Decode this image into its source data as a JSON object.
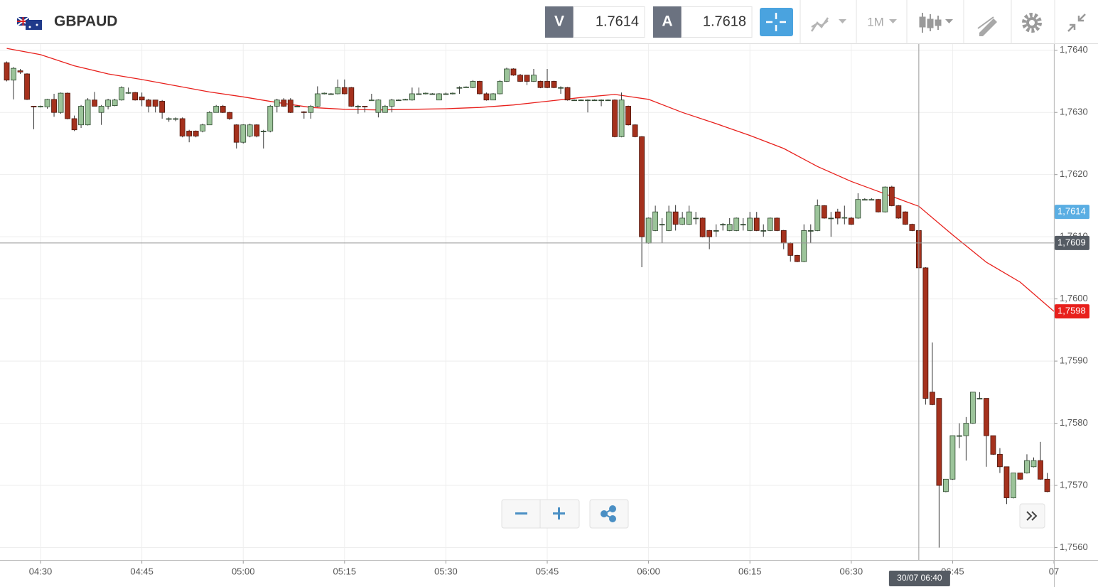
{
  "toolbar": {
    "symbol": "GBPAUD",
    "bid_label": "V",
    "bid": "1.7614",
    "ask_label": "A",
    "ask": "1.7618",
    "timeframe": "1M"
  },
  "chart_data": {
    "type": "candlestick",
    "up_color": "#9cc49a",
    "down_color": "#a5311d",
    "xlim": [
      "04:24",
      "07:00"
    ],
    "ylim": [
      1.7558,
      1.7641
    ],
    "grid": true,
    "xticks": [
      "04:30",
      "04:45",
      "05:00",
      "05:15",
      "05:30",
      "05:45",
      "06:00",
      "06:15",
      "06:30",
      "06:45",
      {
        "value": "07:00",
        "label": "07"
      }
    ],
    "yticks": [
      {
        "value": 1.764,
        "label": "1,7640"
      },
      {
        "value": 1.763,
        "label": "1,7630"
      },
      {
        "value": 1.762,
        "label": "1,7620"
      },
      {
        "value": 1.761,
        "label": "1,7610"
      },
      {
        "value": 1.76,
        "label": "1,7600"
      },
      {
        "value": 1.759,
        "label": "1,7590"
      },
      {
        "value": 1.758,
        "label": "1,7580"
      },
      {
        "value": 1.757,
        "label": "1,7570"
      },
      {
        "value": 1.756,
        "label": "1,7560"
      }
    ],
    "x": [
      "04:25",
      "04:26",
      "04:27",
      "04:28",
      "04:29",
      "04:30",
      "04:31",
      "04:32",
      "04:33",
      "04:34",
      "04:35",
      "04:36",
      "04:37",
      "04:38",
      "04:39",
      "04:40",
      "04:41",
      "04:42",
      "04:43",
      "04:44",
      "04:45",
      "04:46",
      "04:47",
      "04:48",
      "04:49",
      "04:50",
      "04:51",
      "04:52",
      "04:53",
      "04:54",
      "04:55",
      "04:56",
      "04:57",
      "04:58",
      "04:59",
      "05:00",
      "05:01",
      "05:02",
      "05:03",
      "05:04",
      "05:05",
      "05:06",
      "05:07",
      "05:08",
      "05:09",
      "05:10",
      "05:11",
      "05:12",
      "05:13",
      "05:14",
      "05:15",
      "05:16",
      "05:17",
      "05:18",
      "05:19",
      "05:20",
      "05:21",
      "05:22",
      "05:23",
      "05:24",
      "05:25",
      "05:26",
      "05:27",
      "05:28",
      "05:29",
      "05:30",
      "05:31",
      "05:32",
      "05:33",
      "05:34",
      "05:35",
      "05:36",
      "05:37",
      "05:38",
      "05:39",
      "05:40",
      "05:41",
      "05:42",
      "05:43",
      "05:44",
      "05:45",
      "05:46",
      "05:47",
      "05:48",
      "05:49",
      "05:50",
      "05:51",
      "05:52",
      "05:53",
      "05:54",
      "05:55",
      "05:56",
      "05:57",
      "05:58",
      "05:59",
      "06:00",
      "06:01",
      "06:02",
      "06:03",
      "06:04",
      "06:05",
      "06:06",
      "06:07",
      "06:08",
      "06:09",
      "06:10",
      "06:11",
      "06:12",
      "06:13",
      "06:14",
      "06:15",
      "06:16",
      "06:17",
      "06:18",
      "06:19",
      "06:20",
      "06:21",
      "06:22",
      "06:23",
      "06:24",
      "06:25",
      "06:26",
      "06:27",
      "06:28",
      "06:29",
      "06:30",
      "06:31",
      "06:32",
      "06:33",
      "06:34",
      "06:35",
      "06:36",
      "06:37",
      "06:38",
      "06:39",
      "06:40",
      "06:41",
      "06:42",
      "06:43",
      "06:44",
      "06:45",
      "06:46",
      "06:47",
      "06:48",
      "06:49",
      "06:50",
      "06:51",
      "06:52",
      "06:53",
      "06:54",
      "06:55",
      "06:56",
      "06:57",
      "06:58",
      "06:59"
    ],
    "open": [
      1.7638,
      1.76352,
      1.76367,
      1.76362,
      1.7631,
      1.76309,
      1.76309,
      1.76321,
      1.763,
      1.76331,
      1.7629,
      1.7628,
      1.7628,
      1.7632,
      1.763,
      1.7631,
      1.76311,
      1.7632,
      1.76331,
      1.76332,
      1.76325,
      1.7632,
      1.7632,
      1.76318,
      1.7629,
      1.7629,
      1.7629,
      1.7627,
      1.7627,
      1.7627,
      1.7628,
      1.763,
      1.7631,
      1.763,
      1.7628,
      1.76252,
      1.76262,
      1.7628,
      1.7627,
      1.7627,
      1.7631,
      1.7632,
      1.7632,
      1.7631,
      1.76301,
      1.763,
      1.7631,
      1.7633,
      1.7633,
      1.7633,
      1.7634,
      1.7634,
      1.7631,
      1.7631,
      1.76319,
      1.763,
      1.763,
      1.7631,
      1.7632,
      1.7632,
      1.7632,
      1.7633,
      1.7633,
      1.7633,
      1.7632,
      1.7633,
      1.7633,
      1.7634,
      1.7634,
      1.7634,
      1.7635,
      1.7633,
      1.7632,
      1.7633,
      1.7635,
      1.7637,
      1.7636,
      1.7636,
      1.7635,
      1.7635,
      1.7635,
      1.7635,
      1.7634,
      1.7634,
      1.7632,
      1.7632,
      1.7632,
      1.7632,
      1.7632,
      1.7632,
      1.7632,
      1.76261,
      1.7631,
      1.7628,
      1.76261,
      1.7609,
      1.7611,
      1.7612,
      1.7611,
      1.7614,
      1.7612,
      1.7612,
      1.7613,
      1.7613,
      1.7611,
      1.7611,
      1.7612,
      1.7611,
      1.7611,
      1.7612,
      1.7611,
      1.7613,
      1.7611,
      1.7611,
      1.7613,
      1.7611,
      1.7609,
      1.7607,
      1.7606,
      1.7611,
      1.7611,
      1.7615,
      1.7613,
      1.7614,
      1.7613,
      1.7613,
      1.7613,
      1.7616,
      1.7616,
      1.7616,
      1.7614,
      1.7618,
      1.7615,
      1.7614,
      1.7612,
      1.7611,
      1.7605,
      1.7585,
      1.7584,
      1.7569,
      1.7571,
      1.7578,
      1.7578,
      1.758,
      1.7584,
      1.7584,
      1.7578,
      1.7575,
      1.7573,
      1.7568,
      1.7572,
      1.7572,
      1.7573,
      1.7574,
      1.7571
    ],
    "high": [
      1.76382,
      1.76373,
      1.7637,
      1.76363,
      1.7631,
      1.76311,
      1.76322,
      1.7633,
      1.76332,
      1.76332,
      1.76295,
      1.76312,
      1.76323,
      1.76333,
      1.76312,
      1.76322,
      1.76322,
      1.76342,
      1.7634,
      1.76333,
      1.76332,
      1.76322,
      1.7632,
      1.7632,
      1.76292,
      1.76292,
      1.76292,
      1.76272,
      1.76271,
      1.76282,
      1.76302,
      1.76312,
      1.76312,
      1.76301,
      1.76281,
      1.76281,
      1.76282,
      1.76281,
      1.76272,
      1.76312,
      1.76322,
      1.76323,
      1.76323,
      1.76311,
      1.76302,
      1.76312,
      1.76342,
      1.76332,
      1.76331,
      1.76353,
      1.76353,
      1.76341,
      1.76312,
      1.7631,
      1.7633,
      1.76321,
      1.76312,
      1.76322,
      1.76321,
      1.76322,
      1.7634,
      1.7634,
      1.76332,
      1.76331,
      1.76331,
      1.76332,
      1.76332,
      1.76342,
      1.76342,
      1.76352,
      1.76351,
      1.76332,
      1.76331,
      1.76352,
      1.76372,
      1.76371,
      1.76362,
      1.7636,
      1.7637,
      1.76351,
      1.7637,
      1.76351,
      1.76342,
      1.76341,
      1.76321,
      1.76321,
      1.76321,
      1.76321,
      1.76321,
      1.76321,
      1.76321,
      1.76332,
      1.76311,
      1.76281,
      1.76262,
      1.76131,
      1.7615,
      1.7613,
      1.7615,
      1.76151,
      1.7614,
      1.7615,
      1.7614,
      1.76131,
      1.76111,
      1.7612,
      1.76122,
      1.7613,
      1.76131,
      1.7613,
      1.7614,
      1.7614,
      1.7612,
      1.76131,
      1.76131,
      1.76111,
      1.76091,
      1.76071,
      1.7612,
      1.7612,
      1.7616,
      1.76151,
      1.7614,
      1.76145,
      1.7615,
      1.76132,
      1.7617,
      1.76162,
      1.76162,
      1.76161,
      1.76181,
      1.76182,
      1.76151,
      1.76141,
      1.76121,
      1.76111,
      1.76051,
      1.7593,
      1.7584,
      1.7571,
      1.7578,
      1.758,
      1.7581,
      1.7585,
      1.7585,
      1.7584,
      1.7578,
      1.7576,
      1.7573,
      1.7572,
      1.7572,
      1.7575,
      1.75745,
      1.7577,
      1.7572
    ],
    "low": [
      1.7635,
      1.76321,
      1.76362,
      1.7632,
      1.76273,
      1.76308,
      1.76306,
      1.76293,
      1.76298,
      1.76289,
      1.7627,
      1.76275,
      1.76279,
      1.7631,
      1.7628,
      1.76305,
      1.7631,
      1.76319,
      1.7633,
      1.76319,
      1.7631,
      1.763,
      1.763,
      1.7629,
      1.76285,
      1.76286,
      1.7626,
      1.76252,
      1.7626,
      1.76268,
      1.7628,
      1.763,
      1.76299,
      1.76288,
      1.76242,
      1.7625,
      1.7626,
      1.7626,
      1.76242,
      1.76268,
      1.763,
      1.76309,
      1.76299,
      1.76309,
      1.7629,
      1.7629,
      1.76309,
      1.76329,
      1.7633,
      1.76329,
      1.76329,
      1.76309,
      1.76298,
      1.763,
      1.76319,
      1.76292,
      1.763,
      1.763,
      1.76319,
      1.7632,
      1.76319,
      1.76329,
      1.76329,
      1.76329,
      1.7632,
      1.76329,
      1.76329,
      1.7633,
      1.7634,
      1.76339,
      1.76329,
      1.76319,
      1.7632,
      1.76329,
      1.76349,
      1.76359,
      1.76349,
      1.76344,
      1.76349,
      1.76339,
      1.76339,
      1.76339,
      1.7633,
      1.76319,
      1.76319,
      1.76319,
      1.763,
      1.76319,
      1.7631,
      1.7632,
      1.7626,
      1.7626,
      1.76279,
      1.7626,
      1.76051,
      1.76089,
      1.76109,
      1.7609,
      1.76109,
      1.7611,
      1.76119,
      1.76119,
      1.7612,
      1.76099,
      1.7608,
      1.761,
      1.7611,
      1.76109,
      1.76109,
      1.7611,
      1.76109,
      1.76109,
      1.761,
      1.76109,
      1.76109,
      1.7608,
      1.7606,
      1.76059,
      1.76059,
      1.7609,
      1.76109,
      1.76129,
      1.761,
      1.7612,
      1.7612,
      1.76119,
      1.76129,
      1.76159,
      1.76159,
      1.76139,
      1.76139,
      1.76149,
      1.76129,
      1.76119,
      1.76109,
      1.76049,
      1.7583,
      1.75829,
      1.756,
      1.75689,
      1.75709,
      1.7576,
      1.7574,
      1.75799,
      1.75839,
      1.7573,
      1.75749,
      1.7572,
      1.7567,
      1.75679,
      1.75709,
      1.75719,
      1.75729,
      1.75709,
      1.75689
    ],
    "close": [
      1.76352,
      1.76371,
      1.76365,
      1.76321,
      1.76309,
      1.7631,
      1.76321,
      1.763,
      1.76331,
      1.7629,
      1.76272,
      1.7631,
      1.7632,
      1.7631,
      1.7631,
      1.7632,
      1.7632,
      1.7634,
      1.76332,
      1.7632,
      1.7632,
      1.7631,
      1.7631,
      1.763,
      1.7629,
      1.7629,
      1.76262,
      1.76262,
      1.76262,
      1.7628,
      1.763,
      1.7631,
      1.763,
      1.7629,
      1.76252,
      1.7628,
      1.7628,
      1.76262,
      1.7627,
      1.7631,
      1.7632,
      1.7631,
      1.763,
      1.7631,
      1.763,
      1.7631,
      1.7633,
      1.76331,
      1.7633,
      1.7634,
      1.7633,
      1.7631,
      1.7631,
      1.76309,
      1.7632,
      1.7632,
      1.7631,
      1.7632,
      1.7632,
      1.76321,
      1.7633,
      1.7633,
      1.76331,
      1.7633,
      1.7633,
      1.7633,
      1.76331,
      1.7634,
      1.76341,
      1.7635,
      1.7633,
      1.7632,
      1.7633,
      1.7635,
      1.7637,
      1.7636,
      1.7635,
      1.7635,
      1.7636,
      1.7634,
      1.7634,
      1.7634,
      1.7634,
      1.7632,
      1.7632,
      1.7632,
      1.7632,
      1.7632,
      1.7632,
      1.7632,
      1.76261,
      1.7632,
      1.7628,
      1.76261,
      1.761,
      1.7613,
      1.7614,
      1.7612,
      1.7614,
      1.7612,
      1.7613,
      1.7614,
      1.7613,
      1.761,
      1.761,
      1.7611,
      1.7612,
      1.7612,
      1.7613,
      1.7612,
      1.7613,
      1.7611,
      1.7611,
      1.7613,
      1.7611,
      1.7609,
      1.7607,
      1.7606,
      1.7611,
      1.7611,
      1.7615,
      1.7613,
      1.7613,
      1.7613,
      1.76131,
      1.7612,
      1.7616,
      1.7616,
      1.7616,
      1.7614,
      1.7618,
      1.7615,
      1.7613,
      1.7612,
      1.7611,
      1.7605,
      1.7584,
      1.7583,
      1.757,
      1.7571,
      1.7578,
      1.7578,
      1.758,
      1.7585,
      1.7584,
      1.7578,
      1.7575,
      1.7573,
      1.7568,
      1.7572,
      1.7571,
      1.7574,
      1.7574,
      1.7571,
      1.7569
    ],
    "ma": {
      "color": "#e8201c",
      "x": [
        "04:25",
        "04:30",
        "04:35",
        "04:40",
        "04:45",
        "04:50",
        "04:55",
        "05:00",
        "05:05",
        "05:10",
        "05:15",
        "05:20",
        "05:25",
        "05:30",
        "05:35",
        "05:40",
        "05:45",
        "05:50",
        "05:55",
        "06:00",
        "06:05",
        "06:10",
        "06:15",
        "06:20",
        "06:25",
        "06:30",
        "06:35",
        "06:40",
        "06:45",
        "06:50",
        "06:55",
        "07:00"
      ],
      "values": [
        1.76403,
        1.76393,
        1.76375,
        1.76362,
        1.76353,
        1.76343,
        1.76333,
        1.76325,
        1.76316,
        1.76308,
        1.76305,
        1.76304,
        1.76305,
        1.76306,
        1.76308,
        1.76312,
        1.76318,
        1.76324,
        1.76329,
        1.76321,
        1.763,
        1.76282,
        1.76263,
        1.76242,
        1.76213,
        1.76189,
        1.76169,
        1.76149,
        1.76103,
        1.76059,
        1.76027,
        1.7598
      ],
      "last_label": {
        "value": 1.7598,
        "label": "1,7598"
      }
    },
    "price_flag": {
      "value": 1.7614,
      "label": "1,7614",
      "color": "#5aaee3"
    },
    "crosshair": {
      "x": "06:40",
      "x_label": "30/07 06:40",
      "y": {
        "value": 1.7609,
        "label": "1,7609"
      }
    }
  }
}
